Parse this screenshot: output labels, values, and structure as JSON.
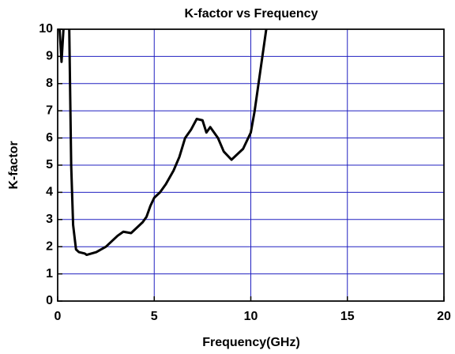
{
  "chart_data": {
    "type": "line",
    "title": "K-factor vs Frequency",
    "x_label": "Frequency(GHz)",
    "y_label": "K-factor",
    "x": [
      0.1,
      0.2,
      0.3,
      null,
      0.6,
      0.7,
      0.8,
      0.95,
      1.1,
      1.4,
      1.5,
      2.0,
      2.5,
      2.8,
      3.1,
      3.4,
      3.8,
      4.1,
      4.4,
      4.6,
      4.8,
      5.0,
      5.3,
      5.6,
      6.0,
      6.3,
      6.6,
      6.9,
      7.2,
      7.5,
      7.7,
      7.9,
      8.3,
      8.6,
      9.0,
      9.3,
      9.6,
      10.0,
      10.2,
      10.5,
      10.8
    ],
    "series": [
      {
        "name": "K-factor",
        "color": "#000000",
        "values": [
          10,
          8.8,
          10,
          null,
          10,
          5,
          2.8,
          1.9,
          1.8,
          1.75,
          1.7,
          1.8,
          2.0,
          2.2,
          2.4,
          2.55,
          2.5,
          2.7,
          2.9,
          3.1,
          3.5,
          3.8,
          4.0,
          4.3,
          4.8,
          5.3,
          6.0,
          6.3,
          6.7,
          6.65,
          6.2,
          6.4,
          6.0,
          5.5,
          5.2,
          5.4,
          5.6,
          6.2,
          7.0,
          8.5,
          10
        ]
      }
    ],
    "xlim": [
      0,
      20
    ],
    "xticks": [
      0,
      5,
      10,
      15,
      20
    ],
    "ylim": [
      0,
      10
    ],
    "yticks": [
      0,
      1,
      2,
      3,
      4,
      5,
      6,
      7,
      8,
      9,
      10
    ],
    "grid": true,
    "grid_color": "#2020c0"
  }
}
